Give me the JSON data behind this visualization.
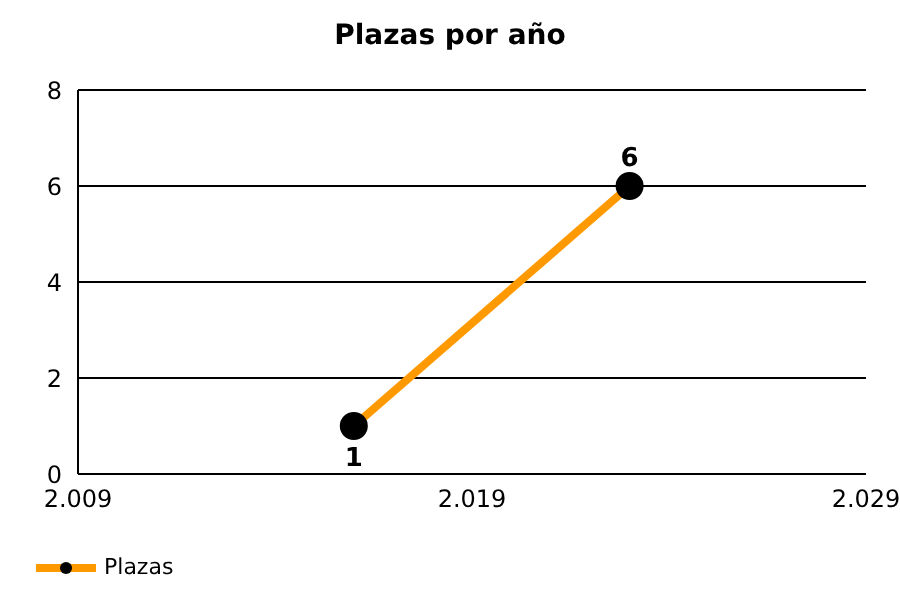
{
  "chart_data": {
    "type": "line",
    "title": "Plazas por año",
    "x": [
      2016,
      2023
    ],
    "series": [
      {
        "name": "Plazas",
        "color": "#ff9900",
        "values": [
          1,
          6
        ]
      }
    ],
    "xlim": [
      2009,
      2029
    ],
    "xticks": [
      {
        "value": 2009,
        "label": "2.009"
      },
      {
        "value": 2019,
        "label": "2.019"
      },
      {
        "value": 2029,
        "label": "2.029"
      }
    ],
    "ylim": [
      0,
      8
    ],
    "yticks": [
      0,
      2,
      4,
      6,
      8
    ],
    "grid": "y",
    "legend": "bottom left",
    "marker": "circle",
    "line_style": "solid",
    "data_labels": true
  }
}
